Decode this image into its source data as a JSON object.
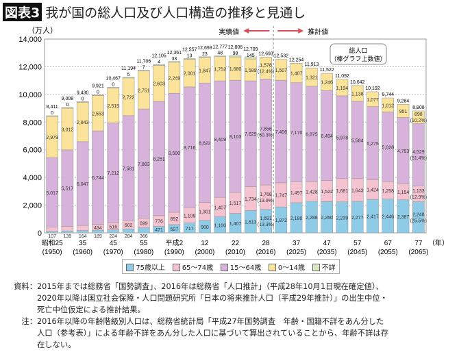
{
  "title": {
    "badge": "図表3",
    "text": "我が国の総人口及び人口構造の推移と見通し"
  },
  "annotations": {
    "actual": "実績値",
    "projected": "推計値",
    "callout_line1": "総人口",
    "callout_line2": "（棒グラフ上数値）",
    "year_unit": "（年）"
  },
  "colors": {
    "age75plus": "#8ecbe6",
    "age65_74": "#f5c3cf",
    "age15_64": "#d7b3dc",
    "age0_14": "#fbe39a",
    "unknown": "#d8e8c0",
    "arrow": "#d9505a"
  },
  "chart_data": {
    "type": "bar",
    "stacked": true,
    "ylabel": "（万人）",
    "ylim": [
      0,
      14000
    ],
    "yticks": [
      "0",
      "2,000",
      "4,000",
      "6,000",
      "8,000",
      "10,000",
      "12,000",
      "14,000"
    ],
    "x": [
      1950,
      1955,
      1960,
      1965,
      1970,
      1975,
      1980,
      1985,
      1990,
      1995,
      2000,
      2005,
      2010,
      2015,
      2016,
      2020,
      2025,
      2030,
      2035,
      2040,
      2045,
      2050,
      2055,
      2060,
      2065
    ],
    "xtick_labels": [
      {
        "index": 0,
        "era": "昭和25",
        "year": "(1950)"
      },
      {
        "index": 2,
        "era": "35",
        "year": "(1960)"
      },
      {
        "index": 4,
        "era": "45",
        "year": "(1970)"
      },
      {
        "index": 6,
        "era": "55",
        "year": "(1980)"
      },
      {
        "index": 8,
        "era": "平成2",
        "year": "(1990)"
      },
      {
        "index": 10,
        "era": "12",
        "year": "(2000)"
      },
      {
        "index": 12,
        "era": "22",
        "year": "(2010)"
      },
      {
        "index": 14,
        "era": "28",
        "year": "(2016)"
      },
      {
        "index": 16,
        "era": "37",
        "year": "(2025)"
      },
      {
        "index": 18,
        "era": "47",
        "year": "(2035)"
      },
      {
        "index": 20,
        "era": "57",
        "year": "(2045)"
      },
      {
        "index": 22,
        "era": "67",
        "year": "(2055)"
      },
      {
        "index": 24,
        "era": "77",
        "year": "(2065)"
      }
    ],
    "series": [
      {
        "name": "75歳以上",
        "key": "age75plus",
        "values": [
          107,
          139,
          164,
          189,
          224,
          284,
          366,
          471,
          597,
          717,
          900,
          1160,
          1407,
          1613,
          1691,
          1872,
          2180,
          2288,
          2260,
          2239,
          2277,
          2417,
          2446,
          2387,
          2248
        ]
      },
      {
        "name": "65～74歳",
        "key": "age65_74",
        "values": [
          309,
          338,
          376,
          434,
          516,
          602,
          699,
          776,
          892,
          1109,
          1301,
          1407,
          1517,
          1734,
          1768,
          1747,
          1497,
          1428,
          1522,
          1681,
          1643,
          1424,
          1258,
          1154,
          1133
        ]
      },
      {
        "name": "15～64歳",
        "key": "age15_64",
        "values": [
          5017,
          5517,
          6047,
          6744,
          7212,
          7581,
          7883,
          8251,
          8590,
          8716,
          8622,
          8409,
          8103,
          7629,
          7656,
          7406,
          7170,
          6875,
          6494,
          5978,
          5584,
          5275,
          5028,
          4793,
          4529
        ]
      },
      {
        "name": "0～14歳",
        "key": "age0_14",
        "values": [
          2979,
          3012,
          2843,
          2553,
          2515,
          2722,
          2751,
          2603,
          2249,
          2001,
          1847,
          1752,
          1680,
          1589,
          1578,
          1507,
          1407,
          1321,
          1246,
          1194,
          1138,
          1077,
          1012,
          951,
          898
        ]
      },
      {
        "name": "不詳",
        "key": "unknown",
        "values": [
          0,
          0,
          0,
          0,
          0,
          5,
          7,
          4,
          33,
          13,
          23,
          48,
          98,
          145,
          null,
          null,
          null,
          null,
          null,
          null,
          null,
          null,
          null,
          null,
          null
        ]
      }
    ],
    "totals": [
      8411,
      9008,
      9430,
      9921,
      10467,
      11194,
      11706,
      12105,
      12361,
      12557,
      12693,
      12777,
      12806,
      12709,
      12693,
      12532,
      12254,
      11913,
      11522,
      11092,
      10642,
      10192,
      9744,
      9284,
      8808
    ],
    "percent_labels": [
      {
        "index": 14,
        "series": "age0_14",
        "text": "(12.4%)"
      },
      {
        "index": 14,
        "series": "age15_64",
        "text": "(60.3%)"
      },
      {
        "index": 14,
        "series": "age65_74",
        "text": "(13.9%)"
      },
      {
        "index": 14,
        "series": "age75plus",
        "text": "(13.3%)"
      },
      {
        "index": 24,
        "series": "age0_14",
        "text": "(10.2%)"
      },
      {
        "index": 24,
        "series": "age15_64",
        "text": "(51.4%)"
      },
      {
        "index": 24,
        "series": "age65_74",
        "text": "(12.9%)"
      },
      {
        "index": 24,
        "series": "age75plus",
        "text": "(25.5%)"
      }
    ],
    "legend": [
      "75歳以上",
      "65～74歳",
      "15～64歳",
      "0～14歳",
      "不詳"
    ],
    "legend_position": "bottom"
  },
  "notes": [
    {
      "head": "資料：",
      "lines": [
        "2015年までは総務省「国勢調査」、2016年は総務省「人口推計」（平成28年10月1日現在確定値）、",
        "2020年以降は国立社会保障・人口問題研究所「日本の将来推計人口（平成29年推計）」の出生中位・",
        "死亡中位仮定による推計結果。"
      ]
    },
    {
      "head": "注：",
      "lines": [
        "2016年以降の年齢階級別人口は、総務省統計局「平成27年国勢調査　年齢・国籍不詳をあん分した",
        "人口（参考表）」による年齢不詳をあん分した人口に基づいて算出されていることから、年齢不詳は存",
        "在しない。"
      ]
    }
  ]
}
